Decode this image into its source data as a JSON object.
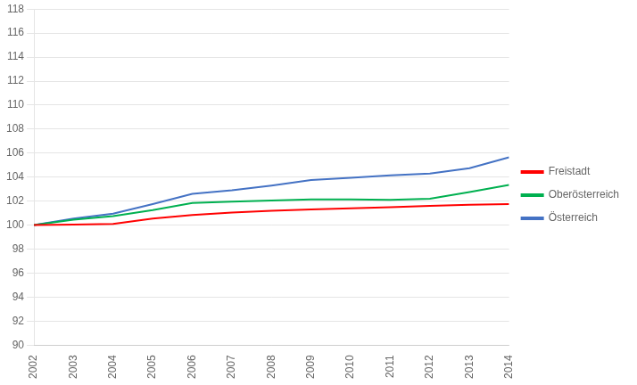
{
  "chart_data": {
    "type": "line",
    "x": [
      2002,
      2003,
      2004,
      2005,
      2006,
      2007,
      2008,
      2009,
      2010,
      2011,
      2012,
      2013,
      2014
    ],
    "series": [
      {
        "name": "Freistadt",
        "color": "#ff0000",
        "values": [
          100.0,
          100.05,
          100.1,
          100.55,
          100.85,
          101.05,
          101.2,
          101.3,
          101.4,
          101.5,
          101.6,
          101.7,
          101.75
        ]
      },
      {
        "name": "Oberösterreich",
        "color": "#00b050",
        "values": [
          100.0,
          100.45,
          100.75,
          101.25,
          101.85,
          101.95,
          102.05,
          102.15,
          102.15,
          102.1,
          102.2,
          102.75,
          103.35
        ]
      },
      {
        "name": "Österreich",
        "color": "#4472c4",
        "values": [
          100.0,
          100.55,
          100.95,
          101.75,
          102.6,
          102.9,
          103.3,
          103.75,
          103.95,
          104.15,
          104.3,
          104.75,
          105.65
        ]
      }
    ],
    "xlim": [
      2002,
      2014
    ],
    "xticks": [
      2002,
      2003,
      2004,
      2005,
      2006,
      2007,
      2008,
      2009,
      2010,
      2011,
      2012,
      2013,
      2014
    ],
    "ylim": [
      90,
      118
    ],
    "yticks": [
      90,
      92,
      94,
      96,
      98,
      100,
      102,
      104,
      106,
      108,
      110,
      112,
      114,
      116,
      118
    ],
    "grid": "y",
    "legend": "right"
  }
}
